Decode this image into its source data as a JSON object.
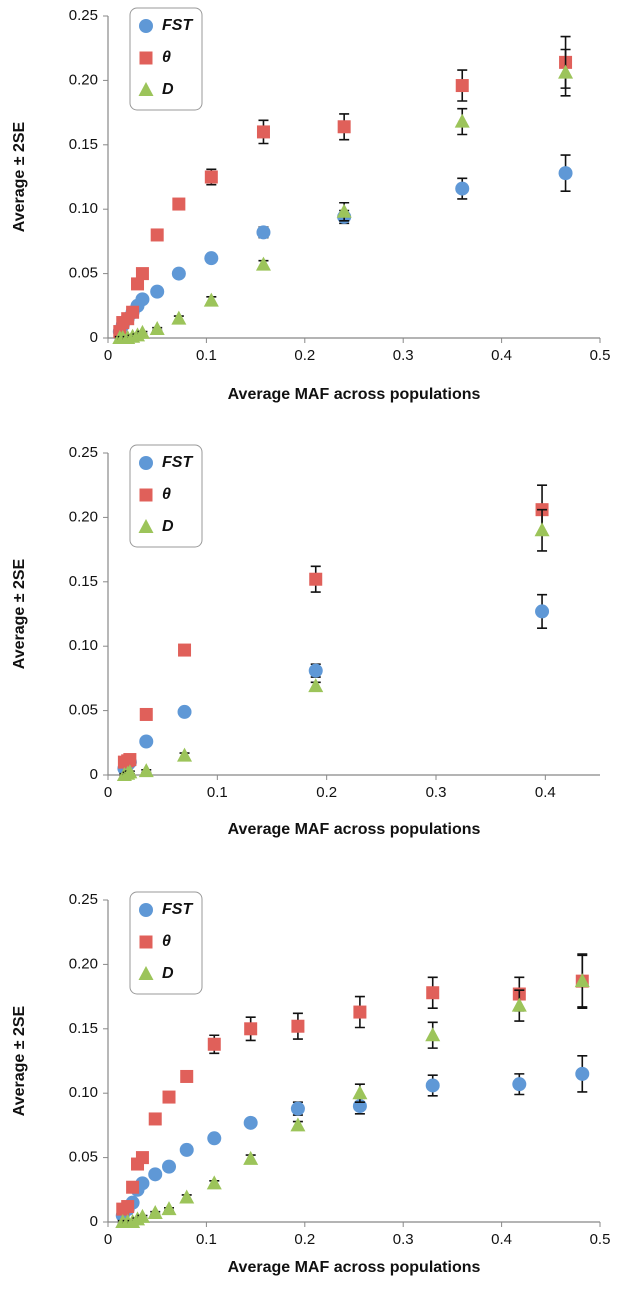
{
  "chart_data": [
    {
      "type": "scatter",
      "x_label": "Average MAF across populations",
      "y_label": "Average ± 2SE",
      "xlim": [
        0,
        0.5
      ],
      "xticks": [
        0,
        0.1,
        0.2,
        0.3,
        0.4,
        0.5
      ],
      "ylim": [
        0,
        0.25
      ],
      "yticks": [
        0,
        0.05,
        {
          "value": 0.1,
          "label": "0.10"
        },
        0.15,
        {
          "value": 0.2,
          "label": "0.20"
        },
        0.25
      ],
      "x": [
        0.012,
        0.015,
        0.02,
        0.025,
        0.03,
        0.035,
        0.05,
        0.072,
        0.105,
        0.158,
        0.24,
        0.36,
        0.465
      ],
      "series": [
        {
          "name": "FST",
          "color": "#5f98d6",
          "marker": "circle",
          "values": [
            0.005,
            0.01,
            0.015,
            0.02,
            0.025,
            0.03,
            0.036,
            0.05,
            0.062,
            0.082,
            0.094,
            0.116,
            0.128
          ],
          "errors": [
            0.001,
            0.001,
            0.001,
            0.001,
            0.001,
            0.001,
            0.002,
            0.002,
            0.003,
            0.004,
            0.005,
            0.008,
            0.014
          ]
        },
        {
          "name": "θ",
          "color": "#e0605a",
          "marker": "square",
          "values": [
            0.005,
            0.012,
            0.015,
            0.02,
            0.042,
            0.05,
            0.08,
            0.104,
            0.125,
            0.16,
            0.164,
            0.196,
            0.214
          ],
          "errors": [
            0.001,
            0.001,
            0.001,
            0.001,
            0.002,
            0.002,
            0.003,
            0.004,
            0.006,
            0.009,
            0.01,
            0.012,
            0.02
          ]
        },
        {
          "name": "D",
          "color": "#9cc45a",
          "marker": "triangle",
          "values": [
            0,
            0,
            0,
            0.001,
            0.002,
            0.004,
            0.007,
            0.015,
            0.029,
            0.057,
            0.098,
            0.168,
            0.206
          ],
          "errors": [
            0.001,
            0.001,
            0.001,
            0.001,
            0.001,
            0.001,
            0.001,
            0.002,
            0.003,
            0.003,
            0.007,
            0.01,
            0.018
          ]
        }
      ]
    },
    {
      "type": "scatter",
      "x_label": "Average MAF across populations",
      "y_label": "Average ± 2SE",
      "xlim": [
        0,
        0.45
      ],
      "xticks": [
        0,
        0.1,
        0.2,
        0.3,
        0.4
      ],
      "ylim": [
        0,
        0.25
      ],
      "yticks": [
        0,
        0.05,
        {
          "value": 0.1,
          "label": "0.10"
        },
        0.15,
        {
          "value": 0.2,
          "label": "0.20"
        },
        0.25
      ],
      "x": [
        0.015,
        0.018,
        0.02,
        0.035,
        0.07,
        0.19,
        0.397
      ],
      "series": [
        {
          "name": "FST",
          "color": "#5f98d6",
          "marker": "circle",
          "values": [
            0.005,
            0.008,
            0.01,
            0.026,
            0.049,
            0.081,
            0.127
          ],
          "errors": [
            0.001,
            0.001,
            0.001,
            0.001,
            0.002,
            0.005,
            0.013
          ]
        },
        {
          "name": "θ",
          "color": "#e0605a",
          "marker": "square",
          "values": [
            0.01,
            0.011,
            0.012,
            0.047,
            0.097,
            0.152,
            0.206
          ],
          "errors": [
            0.001,
            0.001,
            0.001,
            0.002,
            0.004,
            0.01,
            0.019
          ]
        },
        {
          "name": "D",
          "color": "#9cc45a",
          "marker": "triangle",
          "values": [
            0,
            0.001,
            0.002,
            0.003,
            0.015,
            0.069,
            0.19
          ],
          "errors": [
            0.001,
            0.001,
            0.001,
            0.001,
            0.002,
            0.003,
            0.016
          ]
        }
      ]
    },
    {
      "type": "scatter",
      "x_label": "Average MAF across populations",
      "y_label": "Average ± 2SE",
      "xlim": [
        0,
        0.5
      ],
      "xticks": [
        0,
        0.1,
        0.2,
        0.3,
        0.4,
        0.5
      ],
      "ylim": [
        0,
        0.25
      ],
      "yticks": [
        0,
        0.05,
        {
          "value": 0.1,
          "label": "0.10"
        },
        0.15,
        {
          "value": 0.2,
          "label": "0.20"
        },
        0.25
      ],
      "x": [
        0.015,
        0.02,
        0.025,
        0.03,
        0.035,
        0.048,
        0.062,
        0.08,
        0.108,
        0.145,
        0.193,
        0.256,
        0.33,
        0.418,
        0.482
      ],
      "series": [
        {
          "name": "FST",
          "color": "#5f98d6",
          "marker": "circle",
          "values": [
            0.005,
            0.01,
            0.015,
            0.025,
            0.03,
            0.037,
            0.043,
            0.056,
            0.065,
            0.077,
            0.088,
            0.09,
            0.106,
            0.107,
            0.115
          ],
          "errors": [
            0.001,
            0.001,
            0.001,
            0.001,
            0.001,
            0.002,
            0.002,
            0.002,
            0.003,
            0.003,
            0.005,
            0.006,
            0.008,
            0.008,
            0.014
          ]
        },
        {
          "name": "θ",
          "color": "#e0605a",
          "marker": "square",
          "values": [
            0.01,
            0.012,
            0.027,
            0.045,
            0.05,
            0.08,
            0.097,
            0.113,
            0.138,
            0.15,
            0.152,
            0.163,
            0.178,
            0.177,
            0.187
          ],
          "errors": [
            0.001,
            0.001,
            0.001,
            0.002,
            0.002,
            0.002,
            0.003,
            0.004,
            0.007,
            0.009,
            0.01,
            0.012,
            0.012,
            0.013,
            0.021
          ]
        },
        {
          "name": "D",
          "color": "#9cc45a",
          "marker": "triangle",
          "values": [
            0,
            0,
            0,
            0.002,
            0.004,
            0.007,
            0.01,
            0.019,
            0.03,
            0.049,
            0.075,
            0.1,
            0.145,
            0.168,
            0.187
          ],
          "errors": [
            0.001,
            0.001,
            0.001,
            0.001,
            0.001,
            0.001,
            0.001,
            0.002,
            0.002,
            0.003,
            0.003,
            0.007,
            0.01,
            0.012,
            0.02
          ]
        }
      ]
    }
  ]
}
